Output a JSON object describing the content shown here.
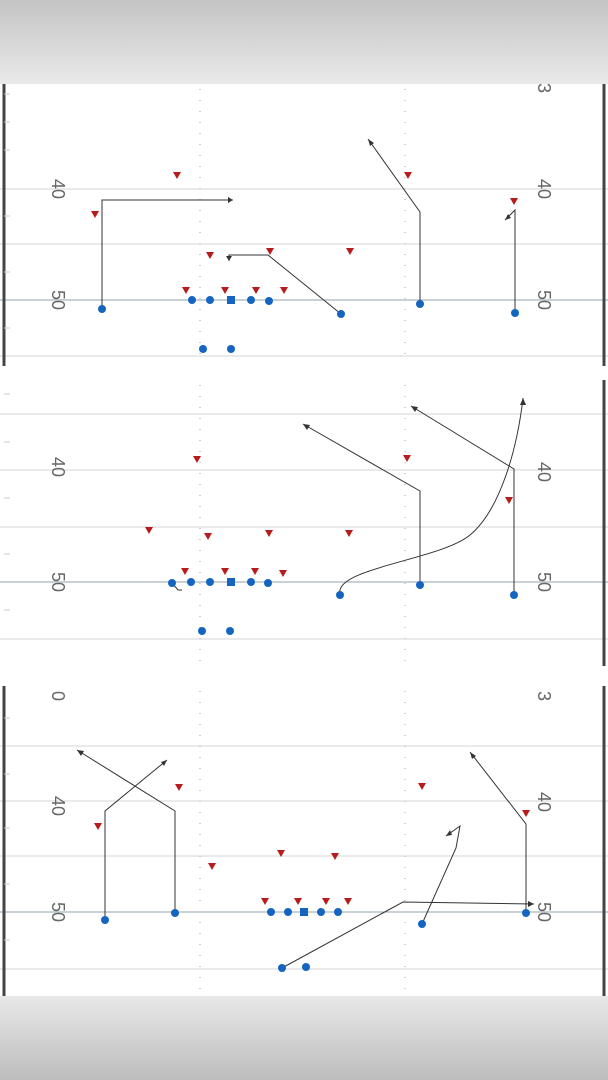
{
  "colors": {
    "offense": "#1565c0",
    "defense": "#b71c1c",
    "route": "#333333",
    "line_of_scrimmage": "#78909c",
    "yard_line": "#cfcfcf",
    "hash": "#c8c8c8",
    "sideline": "#333333"
  },
  "plays": [
    {
      "yard_labels": [
        {
          "text": "50",
          "y": 50
        },
        {
          "text": "40",
          "y": 40
        },
        {
          "text": "50",
          "y": 50
        },
        {
          "text": "40",
          "y": 40
        },
        {
          "text": "3",
          "y": 31.5
        }
      ]
    },
    {
      "yard_labels": [
        {
          "text": "50",
          "y": 50
        },
        {
          "text": "40",
          "y": 40
        },
        {
          "text": "50",
          "y": 50
        },
        {
          "text": "40",
          "y": 40
        }
      ]
    },
    {
      "yard_labels": [
        {
          "text": "50",
          "y": 50
        },
        {
          "text": "40",
          "y": 40
        },
        {
          "text": "0",
          "y": 30.5
        },
        {
          "text": "50",
          "y": 50
        },
        {
          "text": "40",
          "y": 40
        },
        {
          "text": "3",
          "y": 30.5
        }
      ]
    }
  ]
}
